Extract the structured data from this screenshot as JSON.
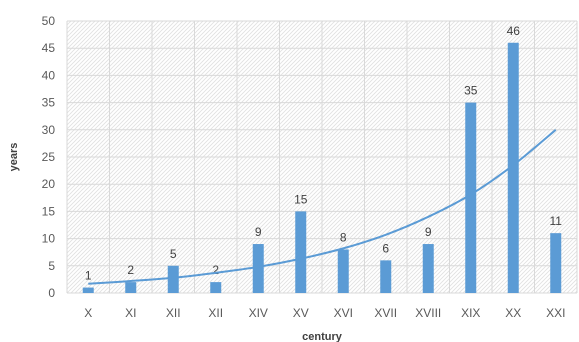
{
  "chart_data": {
    "type": "bar",
    "categories": [
      "X",
      "XI",
      "XII",
      "XII",
      "XIV",
      "XV",
      "XVI",
      "XVII",
      "XVIII",
      "XIX",
      "XX",
      "XXI"
    ],
    "values": [
      1,
      2,
      5,
      2,
      9,
      15,
      8,
      6,
      9,
      35,
      46,
      11
    ],
    "data_labels": [
      "1",
      "2",
      "5",
      "2",
      "9",
      "15",
      "8",
      "6",
      "9",
      "35",
      "46",
      "11"
    ],
    "xlabel": "century",
    "ylabel": "years",
    "ylim": [
      0,
      50
    ],
    "yticks": [
      0,
      5,
      10,
      15,
      20,
      25,
      30,
      35,
      40,
      45,
      50
    ],
    "grid": true,
    "bar_color": "#5b9bd5",
    "trendline": {
      "type": "exponential",
      "color": "#5b9bd5",
      "values": [
        1.7,
        2.2,
        2.8,
        3.7,
        4.8,
        6.3,
        8.2,
        10.7,
        14.0,
        18.1,
        23.5,
        30.0
      ]
    }
  }
}
